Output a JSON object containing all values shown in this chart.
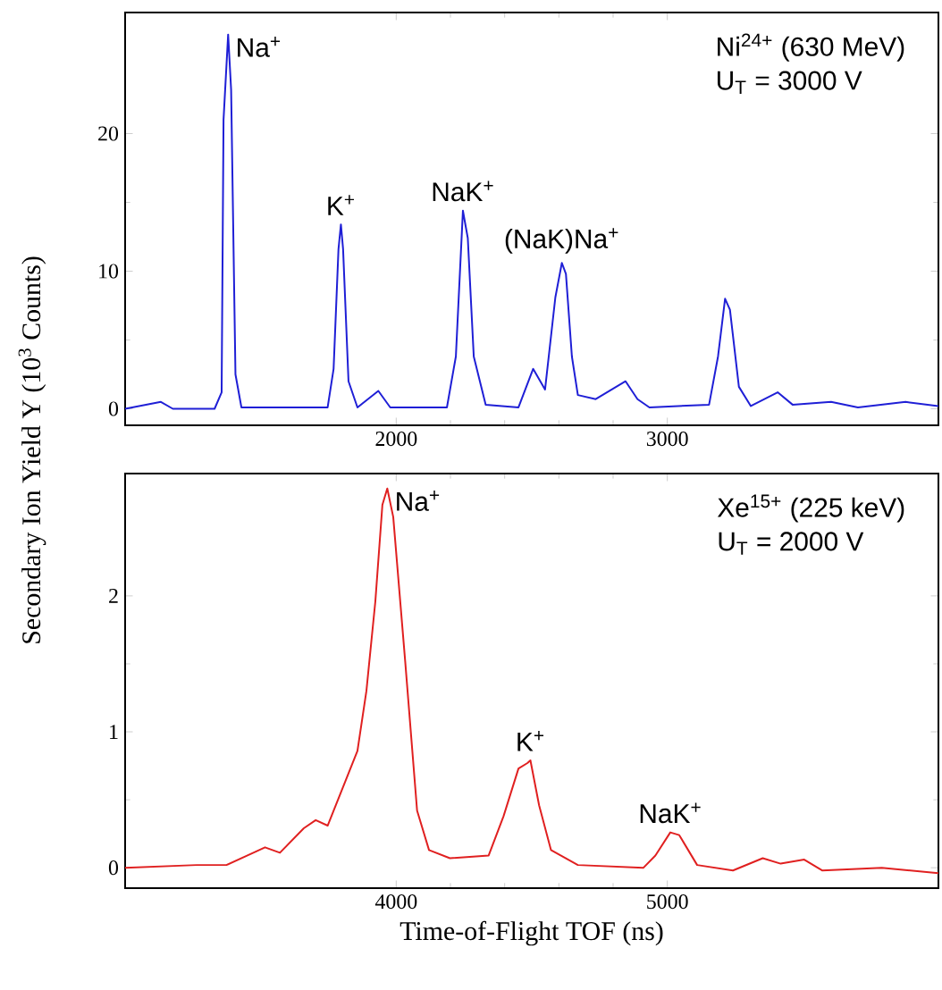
{
  "chart_data": [
    {
      "type": "line",
      "ylabel": "Secondary Ion Yield  Y (10$^{3}$ Counts)",
      "xlim": [
        1000,
        4000
      ],
      "ylim": [
        -1.2,
        28.8
      ],
      "xticks": [
        2000,
        3000
      ],
      "yticks": [
        0,
        10,
        20
      ],
      "marker": "none",
      "line_style": "solid",
      "series": [
        {
          "color": "#1f1fd6",
          "x": [
            1000,
            1132,
            1176,
            1330,
            1356,
            1363,
            1380,
            1391,
            1407,
            1429,
            1747,
            1769,
            1787,
            1796,
            1804,
            1824,
            1857,
            1934,
            1978,
            2187,
            2220,
            2246,
            2264,
            2286,
            2330,
            2451,
            2505,
            2549,
            2587,
            2611,
            2626,
            2648,
            2670,
            2736,
            2846,
            2890,
            2934,
            3154,
            3187,
            3213,
            3231,
            3264,
            3308,
            3407,
            3462,
            3604,
            3703,
            3879,
            4000
          ],
          "values": [
            0,
            0.5,
            0,
            0,
            1.2,
            21,
            27.2,
            23.2,
            2.5,
            0.1,
            0.1,
            2.9,
            11.6,
            13.4,
            11.6,
            2.0,
            0.1,
            1.3,
            0.1,
            0.1,
            3.8,
            14.4,
            12.4,
            3.8,
            0.3,
            0.1,
            2.9,
            1.4,
            8.1,
            10.6,
            9.8,
            3.8,
            1.0,
            0.7,
            2.0,
            0.7,
            0.1,
            0.3,
            3.8,
            8.0,
            7.2,
            1.6,
            0.2,
            1.2,
            0.3,
            0.5,
            0.1,
            0.5,
            0.2
          ]
        }
      ],
      "annotations": [
        {
          "text": "Na$^{+}$",
          "x": 1380,
          "y": 27.2
        },
        {
          "text": "K$^{+}$",
          "x": 1796,
          "y": 13.4
        },
        {
          "text": "NaK$^{+}$",
          "x": 2246,
          "y": 14.4
        },
        {
          "text": "(NaK)Na$^{+}$",
          "x": 2611,
          "y": 10.6
        },
        "Ni$^{24+}$ (630 MeV)",
        "U$_{T}$ = 3000 V"
      ]
    },
    {
      "type": "line",
      "xlabel": "Time-of-Flight TOF (ns)",
      "xlim": [
        3000,
        6000
      ],
      "ylim": [
        -0.15,
        2.9
      ],
      "xticks": [
        4000,
        5000
      ],
      "yticks": [
        0,
        1,
        2
      ],
      "marker": "none",
      "line_style": "solid",
      "series": [
        {
          "color": "#e02020",
          "x": [
            3000,
            3264,
            3374,
            3473,
            3516,
            3571,
            3659,
            3703,
            3747,
            3769,
            3813,
            3857,
            3890,
            3923,
            3949,
            3967,
            3989,
            4033,
            4077,
            4121,
            4198,
            4341,
            4396,
            4451,
            4484,
            4495,
            4527,
            4571,
            4670,
            4912,
            4956,
            5011,
            5044,
            5110,
            5242,
            5352,
            5418,
            5505,
            5571,
            5791,
            6000
          ],
          "values": [
            0,
            0.02,
            0.02,
            0.11,
            0.15,
            0.11,
            0.29,
            0.35,
            0.31,
            0.42,
            0.64,
            0.86,
            1.3,
            1.96,
            2.67,
            2.79,
            2.58,
            1.52,
            0.42,
            0.13,
            0.07,
            0.09,
            0.38,
            0.73,
            0.77,
            0.79,
            0.46,
            0.13,
            0.02,
            0,
            0.09,
            0.26,
            0.24,
            0.02,
            -0.02,
            0.07,
            0.03,
            0.06,
            -0.02,
            0,
            -0.04
          ]
        }
      ],
      "annotations": [
        {
          "text": "Na$^{+}$",
          "x": 3967,
          "y": 2.79
        },
        {
          "text": "K$^{+}$",
          "x": 4495,
          "y": 0.79
        },
        {
          "text": "NaK$^{+}$",
          "x": 5011,
          "y": 0.26
        },
        "Xe$^{15+}$ (225 keV)",
        "U$_{T}$ = 2000 V"
      ]
    }
  ]
}
